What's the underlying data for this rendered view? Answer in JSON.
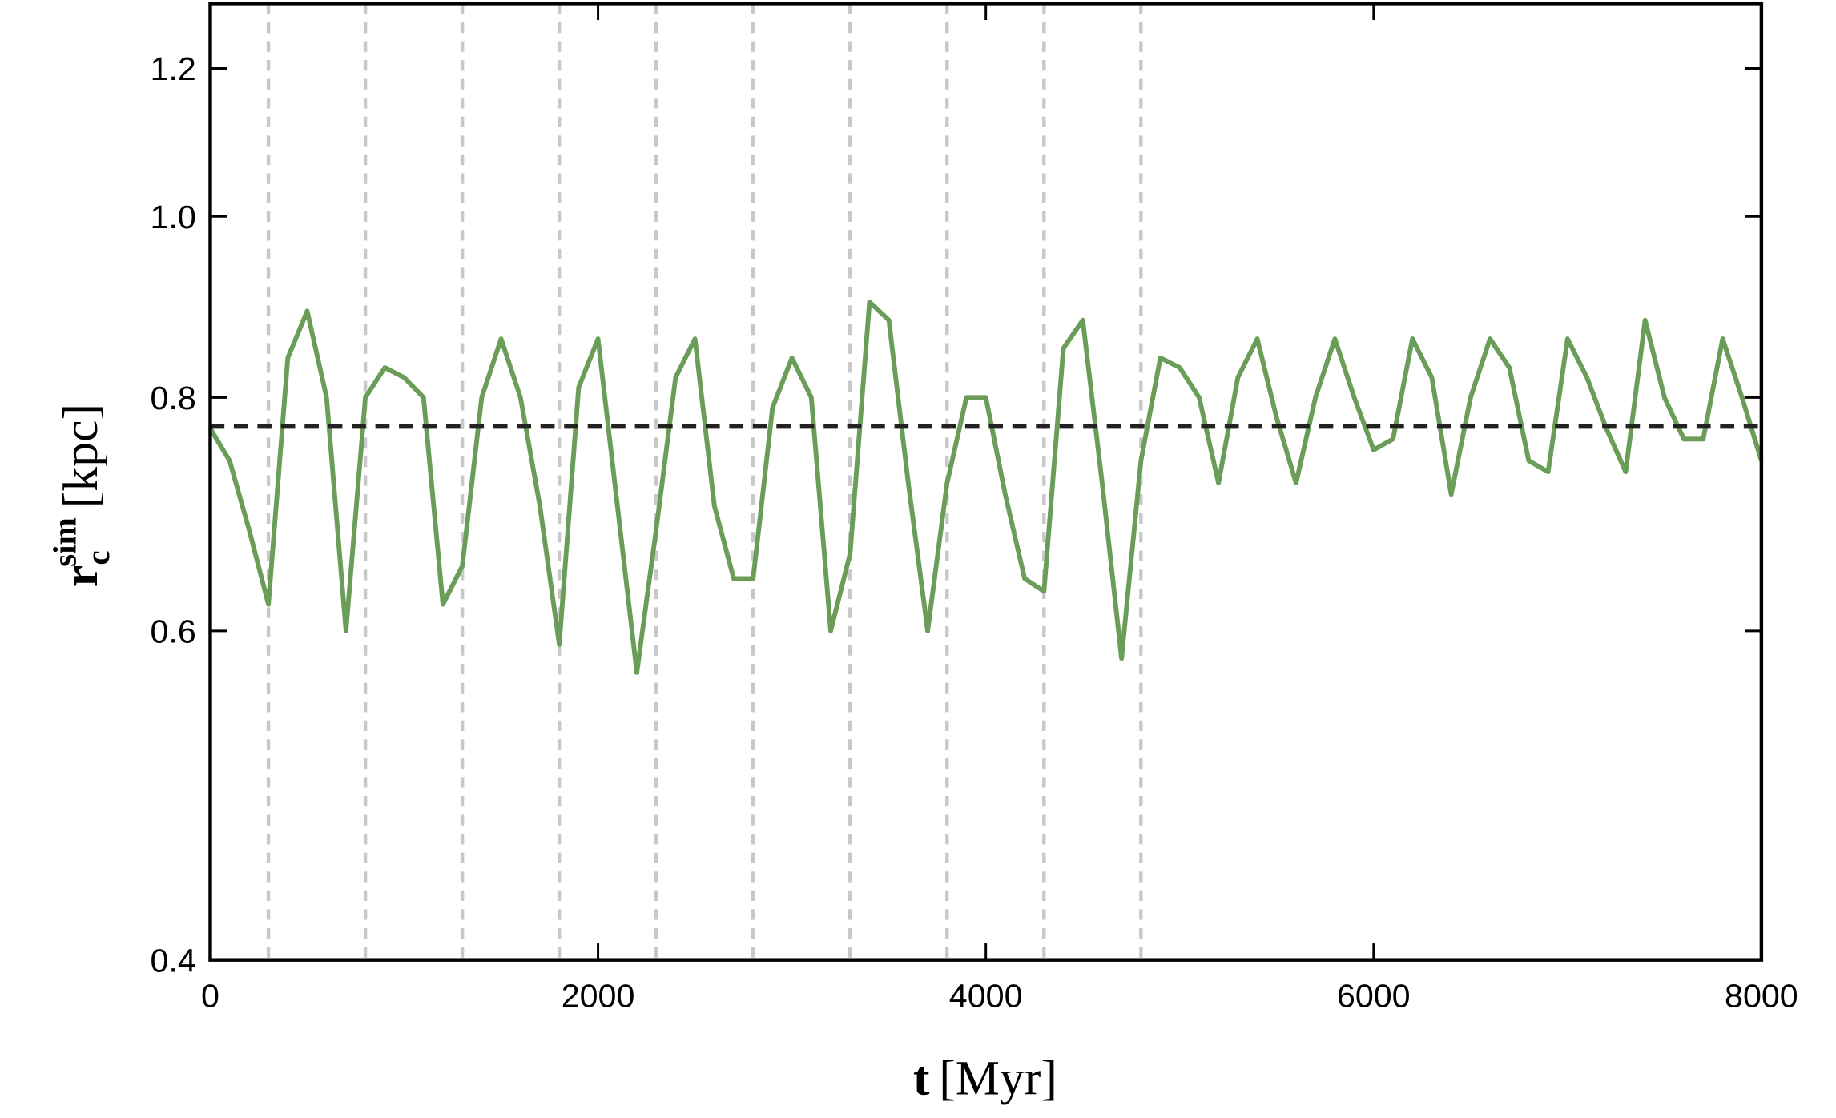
{
  "chart_data": {
    "type": "line",
    "scale_y": "log",
    "xlabel": {
      "symbol": "t",
      "unit": "[Myr]"
    },
    "ylabel": {
      "symbol": "r",
      "subscript": "c",
      "superscript": "sim",
      "unit": "[kpc]"
    },
    "x": [
      0,
      100,
      200,
      300,
      400,
      500,
      600,
      700,
      800,
      900,
      1000,
      1100,
      1200,
      1300,
      1400,
      1500,
      1600,
      1700,
      1800,
      1900,
      2000,
      2100,
      2200,
      2300,
      2400,
      2500,
      2600,
      2700,
      2800,
      2900,
      3000,
      3100,
      3200,
      3300,
      3400,
      3500,
      3600,
      3700,
      3800,
      3900,
      4000,
      4100,
      4200,
      4300,
      4400,
      4500,
      4600,
      4700,
      4800,
      4900,
      5000,
      5100,
      5200,
      5300,
      5400,
      5500,
      5600,
      5700,
      5800,
      5900,
      6000,
      6100,
      6200,
      6300,
      6400,
      6500,
      6600,
      6700,
      6800,
      6900,
      7000,
      7100,
      7200,
      7300,
      7400,
      7500,
      7600,
      7700,
      7800,
      7900,
      8000
    ],
    "series": [
      {
        "color": "#6a9e58",
        "values": [
          0.77,
          0.74,
          0.68,
          0.62,
          0.84,
          0.89,
          0.8,
          0.6,
          0.8,
          0.83,
          0.82,
          0.8,
          0.62,
          0.65,
          0.8,
          0.86,
          0.8,
          0.7,
          0.59,
          0.81,
          0.86,
          0.7,
          0.57,
          0.68,
          0.82,
          0.86,
          0.7,
          0.64,
          0.64,
          0.79,
          0.84,
          0.8,
          0.6,
          0.66,
          0.9,
          0.88,
          0.72,
          0.6,
          0.72,
          0.8,
          0.8,
          0.71,
          0.64,
          0.63,
          0.85,
          0.88,
          0.72,
          0.58,
          0.74,
          0.84,
          0.83,
          0.8,
          0.72,
          0.82,
          0.86,
          0.78,
          0.72,
          0.8,
          0.86,
          0.8,
          0.75,
          0.76,
          0.86,
          0.82,
          0.71,
          0.8,
          0.86,
          0.83,
          0.74,
          0.73,
          0.86,
          0.82,
          0.77,
          0.73,
          0.88,
          0.8,
          0.76,
          0.76,
          0.86,
          0.8,
          0.74
        ]
      }
    ],
    "hlines": [
      {
        "value": 0.772,
        "color": "#222222"
      }
    ],
    "vlines": {
      "values": [
        300,
        800,
        1300,
        1800,
        2300,
        2800,
        3300,
        3800,
        4300,
        4800
      ],
      "color": "#c8c8c8"
    },
    "xlim": [
      0,
      8000
    ],
    "xticks": [
      0,
      2000,
      4000,
      6000,
      8000
    ],
    "ylim": [
      0.4,
      1.3
    ],
    "yticks": [
      0.4,
      0.6,
      0.8,
      {
        "value": 1,
        "label": "1.0"
      },
      1.2
    ]
  }
}
